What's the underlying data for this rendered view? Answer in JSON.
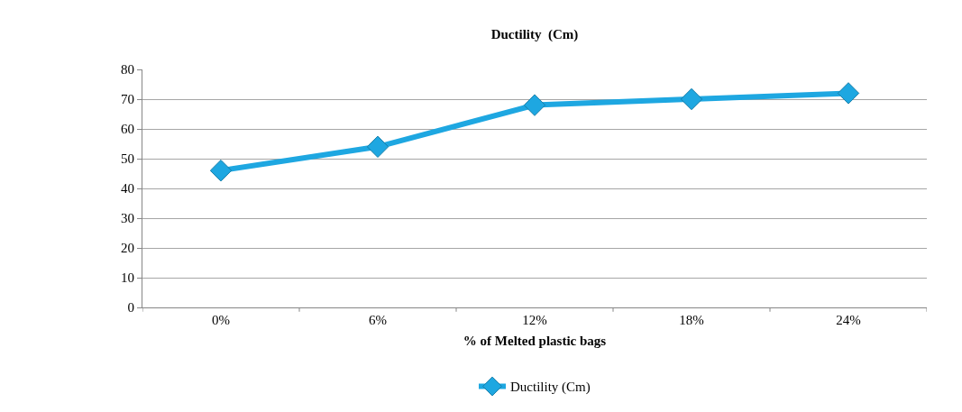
{
  "chart_data": {
    "type": "line",
    "title": "Ductility  (Cm)",
    "xlabel": "% of Melted plastic bags",
    "categories": [
      "0%",
      "6%",
      "12%",
      "18%",
      "24%"
    ],
    "series": [
      {
        "name": "Ductility (Cm)",
        "color": "#1ea7e1",
        "values": [
          46,
          54,
          68,
          70,
          72
        ]
      }
    ],
    "ylim": [
      0,
      80
    ],
    "yticks": [
      0,
      10,
      20,
      30,
      40,
      50,
      60,
      70,
      80
    ],
    "grid": "y",
    "legend": "bottom",
    "marker": "diamond",
    "line_style": "solid"
  }
}
